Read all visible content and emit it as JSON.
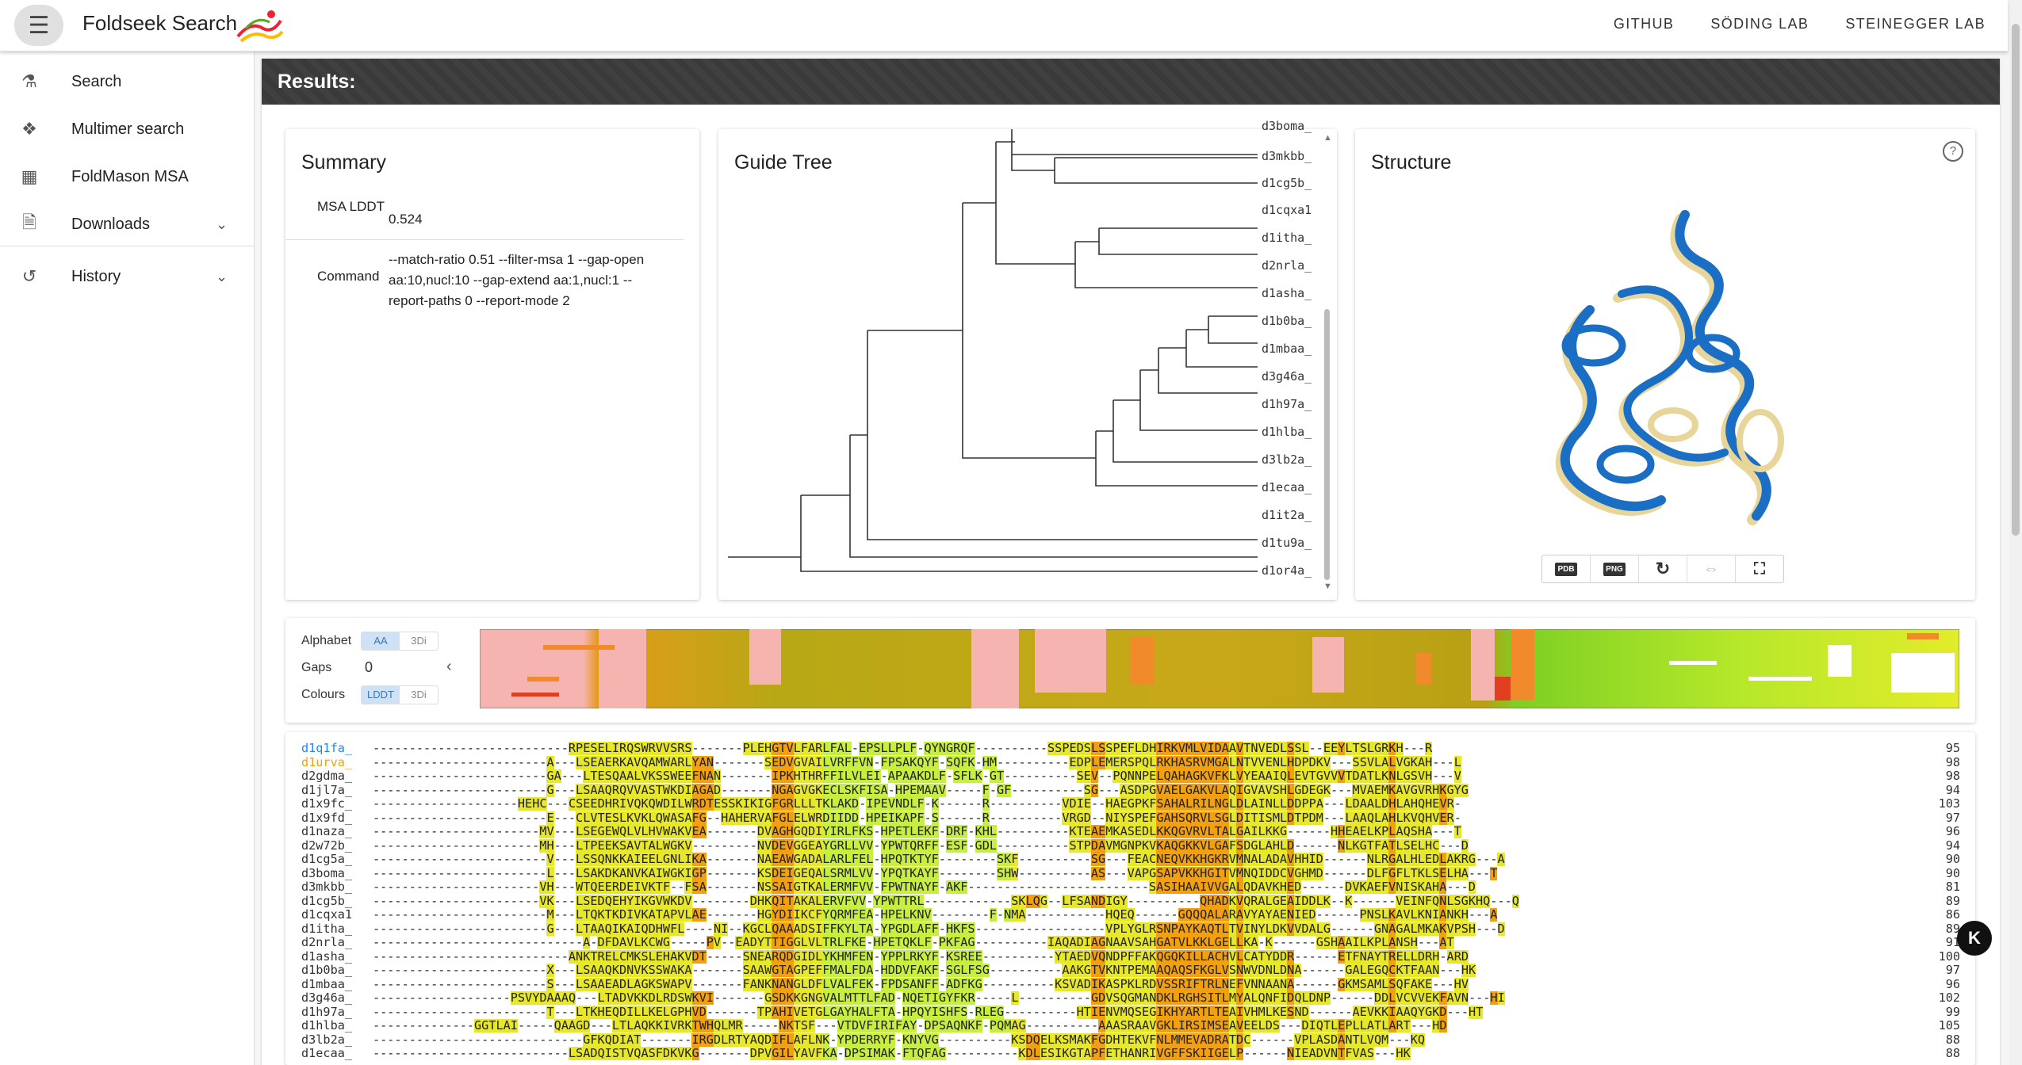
{
  "app": {
    "title": "Foldseek Search"
  },
  "toplinks": [
    "GITHUB",
    "SÖDING LAB",
    "STEINEGGER LAB"
  ],
  "sidebar": {
    "items": [
      {
        "label": "Search",
        "icon": "search-beaker-icon"
      },
      {
        "label": "Multimer search",
        "icon": "multimer-icon"
      },
      {
        "label": "FoldMason MSA",
        "icon": "msa-grid-icon"
      },
      {
        "label": "Downloads",
        "icon": "download-file-icon"
      },
      {
        "label": "History",
        "icon": "history-icon"
      }
    ]
  },
  "results": {
    "heading": "Results:"
  },
  "summary": {
    "title": "Summary",
    "rows": [
      {
        "key": "MSA LDDT",
        "value": "0.524"
      },
      {
        "key": "Command",
        "value": "--match-ratio 0.51 --filter-msa 1 --gap-open aa:10,nucl:10 --gap-extend aa:1,nucl:1 --report-paths 0 --report-mode 2"
      }
    ]
  },
  "guide_tree": {
    "title": "Guide Tree",
    "labels": [
      "d3boma_",
      "d3mkbb_",
      "d1cg5b_",
      "d1cqxa1",
      "d1itha_",
      "d2nrla_",
      "d1asha_",
      "d1b0ba_",
      "d1mbaa_",
      "d3g46a_",
      "d1h97a_",
      "d1hlba_",
      "d3lb2a_",
      "d1ecaa_",
      "d1it2a_",
      "d1tu9a_",
      "d1or4a_"
    ]
  },
  "structure": {
    "title": "Structure",
    "tools": {
      "pdb": "PDB",
      "png": "PNG"
    }
  },
  "controls": {
    "alphabet": {
      "label": "Alphabet",
      "options": [
        "AA",
        "3Di"
      ],
      "selected": "AA"
    },
    "gaps": {
      "label": "Gaps",
      "value": "0"
    },
    "colours": {
      "label": "Colours",
      "options": [
        "LDDT",
        "3Di"
      ],
      "selected": "LDDT"
    }
  },
  "msa": {
    "rows": [
      {
        "name": "d1q1fa_",
        "len": "95",
        "cls": "blue",
        "seq": "---------------------------RPESELIRQSWRVVSRS-------PLEHGTVLFARLFAL-EPSLLPLF-QYNGRQF----------SSPEDSLSSPEFLDHIRKVMLVIDAAVTNVEDLSSL--EEYLTSLGRKH---R"
      },
      {
        "name": "d1urva_",
        "len": "98",
        "cls": "orange",
        "seq": "------------------------A---LSEAERKAVQAMWARLYAN-------SEDVGVAILVRFFVN-FPSAKQYF-SQFK-HM----------EDPLEMERSPQLRKHASRVMGALNTVVENLHDPDKV---SSVLALVGKAH---L"
      },
      {
        "name": "d2gdma_",
        "len": "98",
        "cls": "",
        "seq": "------------------------GA---LTESQAALVKSSWEEFNAN-------IPKHTHRFFILVLEI-APAAKDLF-SFLK-GT----------SEV--PQNNPELQAHAGKVFKLVYEAAIQLEVTGVVVTDATLKNLGSVH---V"
      },
      {
        "name": "d1jl7a_",
        "len": "94",
        "cls": "",
        "seq": "------------------------G---LSAAQRQVVASTWKDIAGAD-------NGAGVGKECLSKFISA-HPEMAAV-----F-GF----------SG---ASDPGVAELGAKVLAQIGVAVSHLGDEGK---MVAEMKAVGVRHKGYG"
      },
      {
        "name": "d1x9fc_",
        "len": "103",
        "cls": "",
        "seq": "--------------------HEHC---CSEEDHRIVQKQWDILWRDTESSKIKIGFGRLLLTKLAKD-IPEVNDLF-K------R----------VDIE--HAEGPKFSAHALRILNGLDLAINLLDDPPA---LDAALDHLAHQHEVR-"
      },
      {
        "name": "d1x9fd_",
        "len": "97",
        "cls": "",
        "seq": "------------------------E---CLVTESLKVKLQWASAFG--HAHERVAFGLELWRDIIDD-HPEIKAPF-S------R----------VRGD--NIYSPEFGAHSQRVLSGLDITISMLDTPDM---LAAQLAHLKVQHVER-"
      },
      {
        "name": "d1naza_",
        "len": "96",
        "cls": "",
        "seq": "-----------------------MV---LSEGEWQLVLHVWAKVEA-------DVAGHGQDIYIRLFKS-HPETLEKF-DRF-KHL----------KTEAEMKASEDLKKQGVRVLTALGAILKKG------HHEAELKPLAQSHA---T"
      },
      {
        "name": "d2w72b_",
        "len": "94",
        "cls": "",
        "seq": "-----------------------MH---LTPEEKSAVTALWGKV---------NVDEVGGEAYGRLLVV-YPWTQRFF-ESF-GDL----------STPDAVMGNPKVKAQGKKVLGAFSDGLAHLD------NLKGTFATLSELHC---D"
      },
      {
        "name": "d1cg5a_",
        "len": "90",
        "cls": "",
        "seq": "------------------------V---LSSQNKKAIEELGNLIKA-------NAEAWGADALARLFEL-HPQTKTYF--------SKF----------SG---FEACNEQVKKHGKRVMNALADAVHHID------NLRGALHLEDLAKRG---A"
      },
      {
        "name": "d3boma_",
        "len": "90",
        "cls": "",
        "seq": "------------------------L---LSAKDKANVKAIWGKIGP-------KSDEIGEQALSRMLVV-YPQTKAYF--------SHW----------AS---VAPGSAPVKKHGITVMNQIDDCVGHMD------DLFGFLTKLSELHA---T"
      },
      {
        "name": "d3mkbb_",
        "len": "81",
        "cls": "",
        "seq": "-----------------------VH---WTQEERDEIVKTF--FSA-------NSSAIGTKALERMFVV-FPWTNAYF-AKF-------------------------SASIHAAIVVGALQDAVKHED------DVKAEFVNISKAHA---D"
      },
      {
        "name": "d1cg5b_",
        "len": "89",
        "cls": "",
        "seq": "-----------------------VK---LSEDQEHYIKGVWKDV--------DHKQITAKALERVFVV-YPWTTRL------------SKLQG--LFSANDIGY----------QHADKVQRALGEAIDDLK--K------VEINFQNLSGKHQ---Q"
      },
      {
        "name": "d1cqxa1",
        "len": "86",
        "cls": "",
        "seq": "------------------------M---LTQKTKDIVKATAPVLAE-------HGYDIIKCFYQRMFEA-HPELKNV--------F-NMA-----------HQEQ------GQQQALARAVYAYAENIED------PNSLKAVLKNIANKH---A"
      },
      {
        "name": "d1itha_",
        "len": "89",
        "cls": "",
        "seq": "------------------------G---LTAAQIKAIQDHWFL----NI--KGCLQAAADSIFFKYLTA-YPGDLAFF-HKFS------------------VPLYGLRSNPAYKAQTLTVINYLDKVVDALG------GNAGALMKAKVPSH---D"
      },
      {
        "name": "d2nrla_",
        "len": "91",
        "cls": "",
        "seq": "-----------------------------A-DFDAVLKCWG-----PV--EADYTTIGGLVLTRLFKE-HPETQKLF-PKFAG----------IAQADIAGNAAVSAHGATVLKKLGELLKA-K------GSHAAILKPLANSH---AT"
      },
      {
        "name": "d1asha_",
        "len": "100",
        "cls": "",
        "seq": "---------------------------ANKTRELCMKSLEHAKVDT-----SNEARQDGIDLYKHMFEN-YPPLRKYF-KSREE----------YTAEDVQNDPFFAKQGQKILLACHVLCATYDDR------ETFNAYTRELLDRH-ARD"
      },
      {
        "name": "d1b0ba_",
        "len": "97",
        "cls": "",
        "seq": "------------------------X---LSAAQKDNVKSSWAKA-------SAAWGTAGPEFFMALFDA-HDDVFAKF-SGLFSG----------AAKGTVKNTPEMAAQAQSFKGLVSNWVDNLDNA------GALEGQCKTFAAN---HK"
      },
      {
        "name": "d1mbaa_",
        "len": "96",
        "cls": "",
        "seq": "------------------------S---LSAAEADLAGKSWAPV-------FANKNANGLDFLVALFEK-FPDSANFF-ADFKG----------KSVADIKASPKLRDVSSRIFTRLNEFVNNAANA------GKMSAMLSQFAKE---HV"
      },
      {
        "name": "d3g46a_",
        "len": "102",
        "cls": "",
        "seq": "-------------------PSVYDAAAQ---LTADVKKDLRDSWKVI-------GSDKKGNGVALMTTLFAD-NQETIGYFKR-----L----------GDVSQGMANDKLRGHSITLMYALQNFIDQLDNP------DDLVCVVEKFAVN---HI"
      },
      {
        "name": "d1h97a_",
        "len": "99",
        "cls": "",
        "seq": "------------------------T---LTKHEQDILLKELGPHVD-------TPAHIVETGLGAYHALFTA-HPQYISHFS-RLEG----------HTIENVMQSEGIKHYARTLTEAIVHMLKESND------AEVKKIAAQYGKD---HT"
      },
      {
        "name": "d1hlba_",
        "len": "105",
        "cls": "",
        "seq": "--------------GGTLAI-----QAAGD---LTLAQKKIVRKTWHQLMR-----NKTSF---VTDVFIRIFAY-DPSAQNKF-PQMAG----------AAASRAAVGKLIRSIMSEAVEELDS---DIQTLEPLLATLART---HD"
      },
      {
        "name": "d3lb2a_",
        "len": "88",
        "cls": "",
        "seq": "-----------------------------GFKQDIAT-------IRGDLRTYAQDIFLAFLNK-YPDERRYF-KNYVG----------KSDQELKSMAKFGDHTEKVFNLMMEVADRATDC------VPLASDANTLVQM---KQ"
      },
      {
        "name": "d1ecaa_",
        "len": "88",
        "cls": "",
        "seq": "---------------------------LSADQISTVQASFDKVKG-------DPVGILYAVFKA-DPSIMAK-FTQFAG----------KDLESIKGTAPFETHANRIVGFFSKIIGELP------NIEADVNTFVAS---HK"
      }
    ]
  }
}
